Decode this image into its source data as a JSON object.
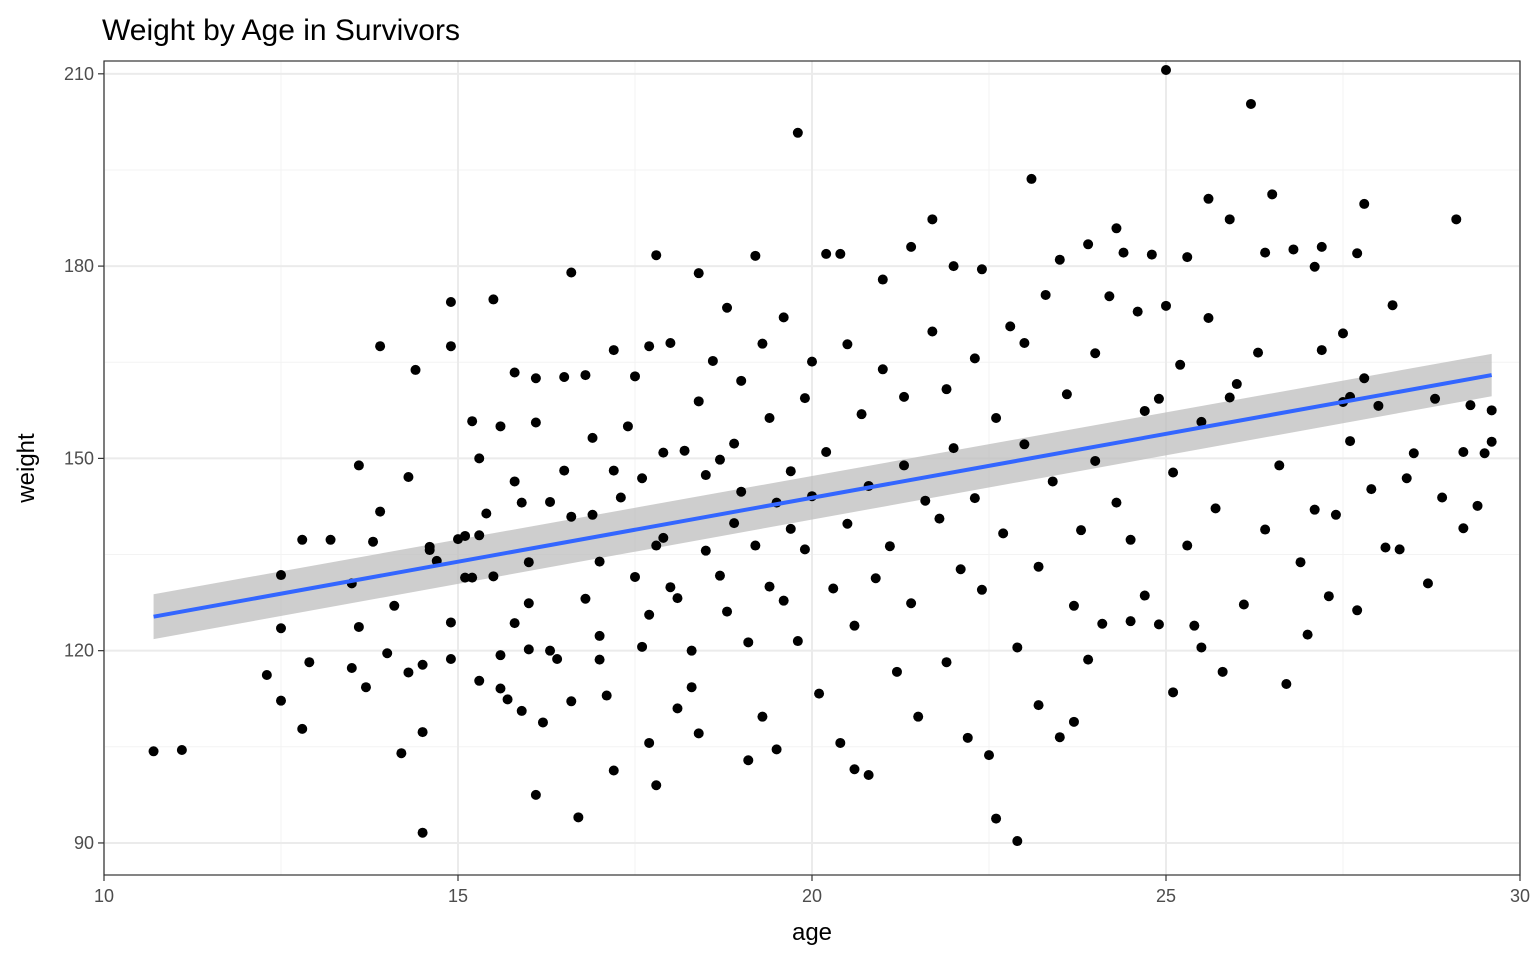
{
  "chart_data": {
    "type": "scatter",
    "title": "Weight by Age in Survivors",
    "xlabel": "age",
    "ylabel": "weight",
    "xlim": [
      10,
      30
    ],
    "ylim": [
      85,
      212
    ],
    "x_ticks": [
      10,
      15,
      20,
      25,
      30
    ],
    "y_ticks": [
      90,
      120,
      150,
      180,
      210
    ],
    "x_tick_labels": [
      "10",
      "15",
      "20",
      "25",
      "30"
    ],
    "y_tick_labels": [
      "90",
      "120",
      "150",
      "180",
      "210"
    ],
    "grid": true,
    "legend": "none",
    "colors": {
      "points": "#000000",
      "fit_line": "#3366ff",
      "confidence_band": "#bdbdbd"
    },
    "fit": {
      "method": "lm",
      "x": [
        10.7,
        29.6
      ],
      "y": [
        125.3,
        163.0
      ],
      "ci_upper": [
        128.8,
        166.3
      ],
      "ci_lower": [
        121.8,
        159.7
      ]
    },
    "points": [
      [
        10.7,
        104.3
      ],
      [
        11.1,
        104.5
      ],
      [
        12.3,
        116.2
      ],
      [
        12.5,
        131.8
      ],
      [
        12.5,
        123.5
      ],
      [
        12.5,
        112.2
      ],
      [
        12.8,
        107.8
      ],
      [
        12.8,
        137.3
      ],
      [
        12.9,
        118.2
      ],
      [
        13.2,
        137.3
      ],
      [
        13.5,
        117.3
      ],
      [
        13.5,
        130.5
      ],
      [
        13.6,
        148.9
      ],
      [
        13.6,
        123.7
      ],
      [
        13.7,
        114.3
      ],
      [
        13.8,
        137.0
      ],
      [
        13.9,
        141.7
      ],
      [
        13.9,
        167.5
      ],
      [
        14.0,
        119.6
      ],
      [
        14.1,
        127.0
      ],
      [
        14.2,
        104.0
      ],
      [
        14.3,
        116.6
      ],
      [
        14.3,
        147.1
      ],
      [
        14.4,
        163.8
      ],
      [
        14.5,
        117.8
      ],
      [
        14.5,
        91.6
      ],
      [
        14.5,
        107.3
      ],
      [
        14.6,
        135.7
      ],
      [
        14.6,
        136.2
      ],
      [
        14.7,
        134.0
      ],
      [
        14.9,
        118.7
      ],
      [
        14.9,
        124.4
      ],
      [
        14.9,
        174.4
      ],
      [
        14.9,
        167.5
      ],
      [
        15.0,
        137.4
      ],
      [
        15.1,
        131.4
      ],
      [
        15.1,
        137.9
      ],
      [
        15.2,
        155.8
      ],
      [
        15.2,
        131.4
      ],
      [
        15.3,
        150.0
      ],
      [
        15.3,
        138.0
      ],
      [
        15.3,
        115.3
      ],
      [
        15.4,
        141.4
      ],
      [
        15.5,
        174.8
      ],
      [
        15.5,
        131.6
      ],
      [
        15.6,
        114.1
      ],
      [
        15.6,
        119.3
      ],
      [
        15.6,
        155.0
      ],
      [
        15.7,
        112.4
      ],
      [
        15.8,
        124.3
      ],
      [
        15.8,
        146.4
      ],
      [
        15.8,
        163.4
      ],
      [
        15.9,
        143.1
      ],
      [
        15.9,
        110.6
      ],
      [
        16.0,
        127.4
      ],
      [
        16.0,
        133.8
      ],
      [
        16.0,
        120.2
      ],
      [
        16.1,
        162.5
      ],
      [
        16.1,
        155.6
      ],
      [
        16.1,
        97.5
      ],
      [
        16.2,
        108.8
      ],
      [
        16.3,
        143.2
      ],
      [
        16.3,
        120.0
      ],
      [
        16.4,
        118.7
      ],
      [
        16.5,
        162.7
      ],
      [
        16.5,
        148.1
      ],
      [
        16.6,
        140.9
      ],
      [
        16.6,
        179.0
      ],
      [
        16.6,
        112.1
      ],
      [
        16.7,
        94.0
      ],
      [
        16.8,
        163.0
      ],
      [
        16.8,
        128.1
      ],
      [
        16.9,
        153.2
      ],
      [
        16.9,
        141.2
      ],
      [
        17.0,
        118.6
      ],
      [
        17.0,
        133.9
      ],
      [
        17.0,
        122.3
      ],
      [
        17.1,
        113.0
      ],
      [
        17.2,
        148.1
      ],
      [
        17.2,
        101.3
      ],
      [
        17.2,
        166.9
      ],
      [
        17.3,
        143.9
      ],
      [
        17.4,
        155.0
      ],
      [
        17.5,
        131.5
      ],
      [
        17.5,
        162.8
      ],
      [
        17.6,
        120.6
      ],
      [
        17.6,
        146.9
      ],
      [
        17.7,
        105.6
      ],
      [
        17.7,
        125.6
      ],
      [
        17.7,
        167.5
      ],
      [
        17.8,
        136.4
      ],
      [
        17.8,
        99.0
      ],
      [
        17.8,
        181.7
      ],
      [
        17.9,
        150.9
      ],
      [
        17.9,
        137.6
      ],
      [
        18.0,
        168.0
      ],
      [
        18.0,
        129.9
      ],
      [
        18.1,
        128.2
      ],
      [
        18.1,
        111.0
      ],
      [
        18.2,
        151.2
      ],
      [
        18.3,
        120.0
      ],
      [
        18.3,
        114.3
      ],
      [
        18.4,
        107.1
      ],
      [
        18.4,
        178.9
      ],
      [
        18.4,
        158.9
      ],
      [
        18.5,
        135.6
      ],
      [
        18.5,
        147.4
      ],
      [
        18.6,
        165.2
      ],
      [
        18.7,
        131.7
      ],
      [
        18.7,
        149.8
      ],
      [
        18.8,
        173.5
      ],
      [
        18.8,
        126.1
      ],
      [
        18.9,
        139.9
      ],
      [
        18.9,
        152.3
      ],
      [
        19.0,
        162.1
      ],
      [
        19.0,
        144.8
      ],
      [
        19.1,
        102.9
      ],
      [
        19.1,
        121.3
      ],
      [
        19.2,
        181.6
      ],
      [
        19.2,
        136.4
      ],
      [
        19.3,
        167.9
      ],
      [
        19.3,
        109.7
      ],
      [
        19.4,
        156.3
      ],
      [
        19.4,
        130.0
      ],
      [
        19.5,
        143.1
      ],
      [
        19.5,
        104.6
      ],
      [
        19.6,
        127.8
      ],
      [
        19.6,
        172.0
      ],
      [
        19.7,
        148.0
      ],
      [
        19.7,
        139.0
      ],
      [
        19.8,
        200.8
      ],
      [
        19.8,
        121.5
      ],
      [
        19.9,
        159.4
      ],
      [
        19.9,
        135.8
      ],
      [
        20.0,
        165.1
      ],
      [
        20.0,
        144.1
      ],
      [
        20.1,
        113.3
      ],
      [
        20.2,
        181.9
      ],
      [
        20.2,
        151.0
      ],
      [
        20.3,
        129.7
      ],
      [
        20.4,
        181.9
      ],
      [
        20.4,
        105.6
      ],
      [
        20.5,
        167.8
      ],
      [
        20.5,
        139.8
      ],
      [
        20.6,
        101.5
      ],
      [
        20.6,
        123.9
      ],
      [
        20.7,
        156.9
      ],
      [
        20.8,
        100.6
      ],
      [
        20.8,
        145.7
      ],
      [
        20.9,
        131.3
      ],
      [
        21.0,
        177.9
      ],
      [
        21.0,
        163.9
      ],
      [
        21.1,
        136.3
      ],
      [
        21.2,
        116.7
      ],
      [
        21.3,
        159.6
      ],
      [
        21.3,
        148.9
      ],
      [
        21.4,
        183.0
      ],
      [
        21.4,
        127.4
      ],
      [
        21.5,
        109.7
      ],
      [
        21.6,
        143.4
      ],
      [
        21.7,
        187.3
      ],
      [
        21.7,
        169.8
      ],
      [
        21.8,
        140.6
      ],
      [
        21.9,
        160.8
      ],
      [
        21.9,
        118.2
      ],
      [
        22.0,
        180.0
      ],
      [
        22.0,
        151.6
      ],
      [
        22.1,
        132.7
      ],
      [
        22.2,
        106.4
      ],
      [
        22.3,
        165.6
      ],
      [
        22.3,
        143.8
      ],
      [
        22.4,
        179.5
      ],
      [
        22.4,
        129.5
      ],
      [
        22.5,
        103.7
      ],
      [
        22.6,
        156.3
      ],
      [
        22.6,
        93.8
      ],
      [
        22.7,
        138.3
      ],
      [
        22.8,
        170.6
      ],
      [
        22.9,
        120.5
      ],
      [
        22.9,
        90.3
      ],
      [
        23.0,
        152.2
      ],
      [
        23.0,
        168.0
      ],
      [
        23.1,
        193.6
      ],
      [
        23.2,
        133.1
      ],
      [
        23.2,
        111.5
      ],
      [
        23.3,
        175.5
      ],
      [
        23.4,
        146.4
      ],
      [
        23.5,
        181.0
      ],
      [
        23.5,
        106.5
      ],
      [
        23.6,
        160.0
      ],
      [
        23.7,
        127.0
      ],
      [
        23.7,
        108.9
      ],
      [
        23.8,
        138.8
      ],
      [
        23.9,
        183.4
      ],
      [
        23.9,
        118.6
      ],
      [
        24.0,
        166.4
      ],
      [
        24.0,
        149.6
      ],
      [
        24.1,
        124.2
      ],
      [
        24.2,
        175.3
      ],
      [
        24.3,
        185.9
      ],
      [
        24.3,
        143.1
      ],
      [
        24.4,
        182.1
      ],
      [
        24.5,
        137.3
      ],
      [
        24.5,
        124.6
      ],
      [
        24.6,
        172.9
      ],
      [
        24.7,
        157.4
      ],
      [
        24.7,
        128.6
      ],
      [
        24.8,
        181.8
      ],
      [
        24.9,
        159.3
      ],
      [
        24.9,
        124.1
      ],
      [
        25.0,
        210.6
      ],
      [
        25.0,
        173.8
      ],
      [
        25.1,
        147.8
      ],
      [
        25.1,
        113.5
      ],
      [
        25.2,
        164.6
      ],
      [
        25.3,
        136.4
      ],
      [
        25.3,
        181.4
      ],
      [
        25.4,
        123.9
      ],
      [
        25.5,
        155.7
      ],
      [
        25.5,
        120.5
      ],
      [
        25.6,
        190.5
      ],
      [
        25.6,
        171.9
      ],
      [
        25.7,
        142.2
      ],
      [
        25.8,
        116.7
      ],
      [
        25.9,
        187.3
      ],
      [
        25.9,
        159.5
      ],
      [
        26.0,
        161.6
      ],
      [
        26.1,
        127.2
      ],
      [
        26.2,
        205.3
      ],
      [
        26.3,
        166.5
      ],
      [
        26.4,
        182.1
      ],
      [
        26.4,
        138.9
      ],
      [
        26.5,
        191.2
      ],
      [
        26.6,
        148.9
      ],
      [
        26.7,
        114.8
      ],
      [
        26.8,
        182.6
      ],
      [
        26.9,
        133.8
      ],
      [
        27.0,
        122.5
      ],
      [
        27.1,
        179.9
      ],
      [
        27.1,
        142.0
      ],
      [
        27.2,
        166.9
      ],
      [
        27.2,
        183.0
      ],
      [
        27.3,
        128.5
      ],
      [
        27.4,
        141.2
      ],
      [
        27.5,
        169.5
      ],
      [
        27.6,
        152.7
      ],
      [
        27.7,
        126.3
      ],
      [
        27.8,
        189.7
      ],
      [
        27.8,
        162.5
      ],
      [
        27.9,
        145.2
      ],
      [
        28.0,
        158.2
      ],
      [
        28.1,
        136.1
      ],
      [
        28.2,
        173.9
      ],
      [
        28.3,
        135.8
      ],
      [
        28.4,
        146.9
      ],
      [
        28.5,
        150.8
      ],
      [
        28.7,
        130.5
      ],
      [
        28.8,
        159.3
      ],
      [
        28.9,
        143.9
      ],
      [
        29.1,
        187.3
      ],
      [
        29.2,
        139.1
      ],
      [
        29.3,
        158.3
      ],
      [
        29.4,
        142.6
      ],
      [
        29.5,
        150.8
      ],
      [
        29.6,
        152.6
      ],
      [
        29.6,
        157.5
      ],
      [
        27.5,
        158.8
      ],
      [
        27.6,
        159.6
      ],
      [
        27.7,
        182.0
      ],
      [
        29.2,
        151.0
      ]
    ]
  }
}
